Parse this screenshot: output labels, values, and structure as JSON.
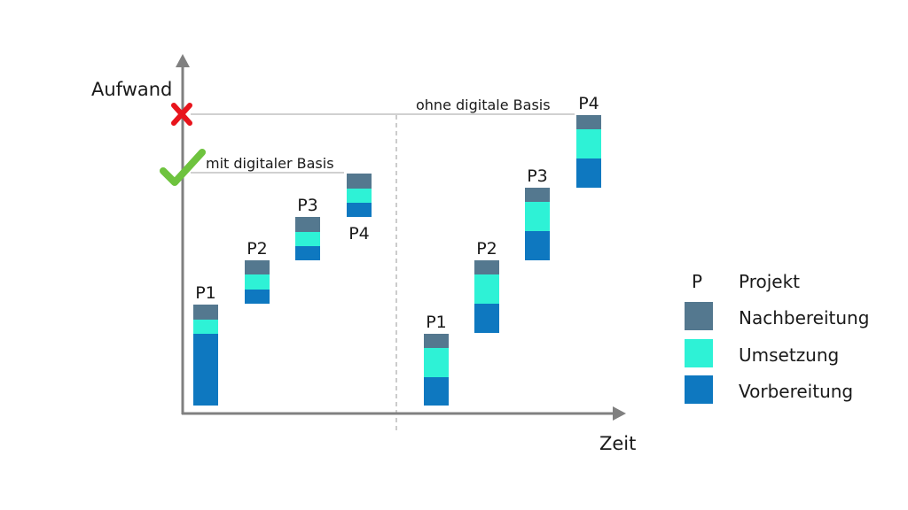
{
  "axes": {
    "y_label": "Aufwand",
    "x_label": "Zeit"
  },
  "markers": {
    "cross_icon": "cross-icon",
    "check_icon": "check-icon"
  },
  "annotations": {
    "with_basis": "mit digitaler Basis",
    "without_basis": "ohne digitale Basis"
  },
  "colors": {
    "nachbereitung": "#54788f",
    "umsetzung": "#2ef2d6",
    "vorbereitung": "#0e78c0",
    "axis": "#808080",
    "cross": "#e8141c",
    "check": "#6ec33e"
  },
  "groups": [
    {
      "name": "mit",
      "projects": [
        {
          "label": "P1",
          "vorbereitung": 81,
          "umsetzung": 16,
          "nachbereitung": 17
        },
        {
          "label": "P2",
          "vorbereitung": 16,
          "umsetzung": 17,
          "nachbereitung": 16
        },
        {
          "label": "P3",
          "vorbereitung": 16,
          "umsetzung": 16,
          "nachbereitung": 17
        },
        {
          "label": "P4",
          "vorbereitung": 16,
          "umsetzung": 16,
          "nachbereitung": 17
        }
      ]
    },
    {
      "name": "ohne",
      "projects": [
        {
          "label": "P1",
          "vorbereitung": 32,
          "umsetzung": 33,
          "nachbereitung": 16
        },
        {
          "label": "P2",
          "vorbereitung": 33,
          "umsetzung": 33,
          "nachbereitung": 16
        },
        {
          "label": "P3",
          "vorbereitung": 33,
          "umsetzung": 33,
          "nachbereitung": 16
        },
        {
          "label": "P4",
          "vorbereitung": 33,
          "umsetzung": 33,
          "nachbereitung": 16
        }
      ]
    }
  ],
  "legend": {
    "p_symbol": "P",
    "p_label": "Projekt",
    "items": [
      {
        "key": "nachbereitung",
        "label": "Nachbereitung"
      },
      {
        "key": "umsetzung",
        "label": "Umsetzung"
      },
      {
        "key": "vorbereitung",
        "label": "Vorbereitung"
      }
    ]
  }
}
